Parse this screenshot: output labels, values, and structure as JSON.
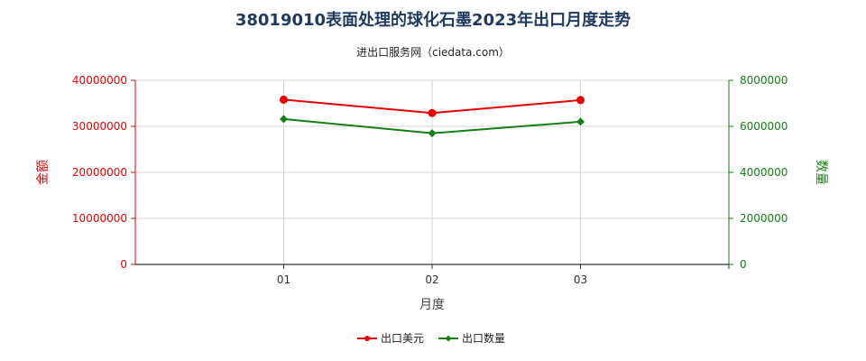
{
  "chart_data": {
    "type": "line",
    "title": "38019010表面处理的球化石墨2023年出口月度走势",
    "subtitle": "进出口服务网（ciedata.com）",
    "xlabel": "月度",
    "ylabel_left": "金额",
    "ylabel_right": "数量",
    "categories": [
      "01",
      "02",
      "03"
    ],
    "ylim_left": [
      0,
      40000000
    ],
    "ylim_right": [
      0,
      8000000
    ],
    "yticks_left": [
      "0",
      "10000000",
      "20000000",
      "30000000",
      "40000000"
    ],
    "yticks_right": [
      "0",
      "2000000",
      "4000000",
      "6000000",
      "8000000"
    ],
    "grid": true,
    "legend_position": "bottom",
    "series": [
      {
        "name": "出口美元",
        "axis": "left",
        "color": "#e60000",
        "values": [
          35800000,
          32900000,
          35700000
        ]
      },
      {
        "name": "出口数量",
        "axis": "right",
        "color": "#128012",
        "values": [
          6320000,
          5700000,
          6200000
        ]
      }
    ]
  }
}
